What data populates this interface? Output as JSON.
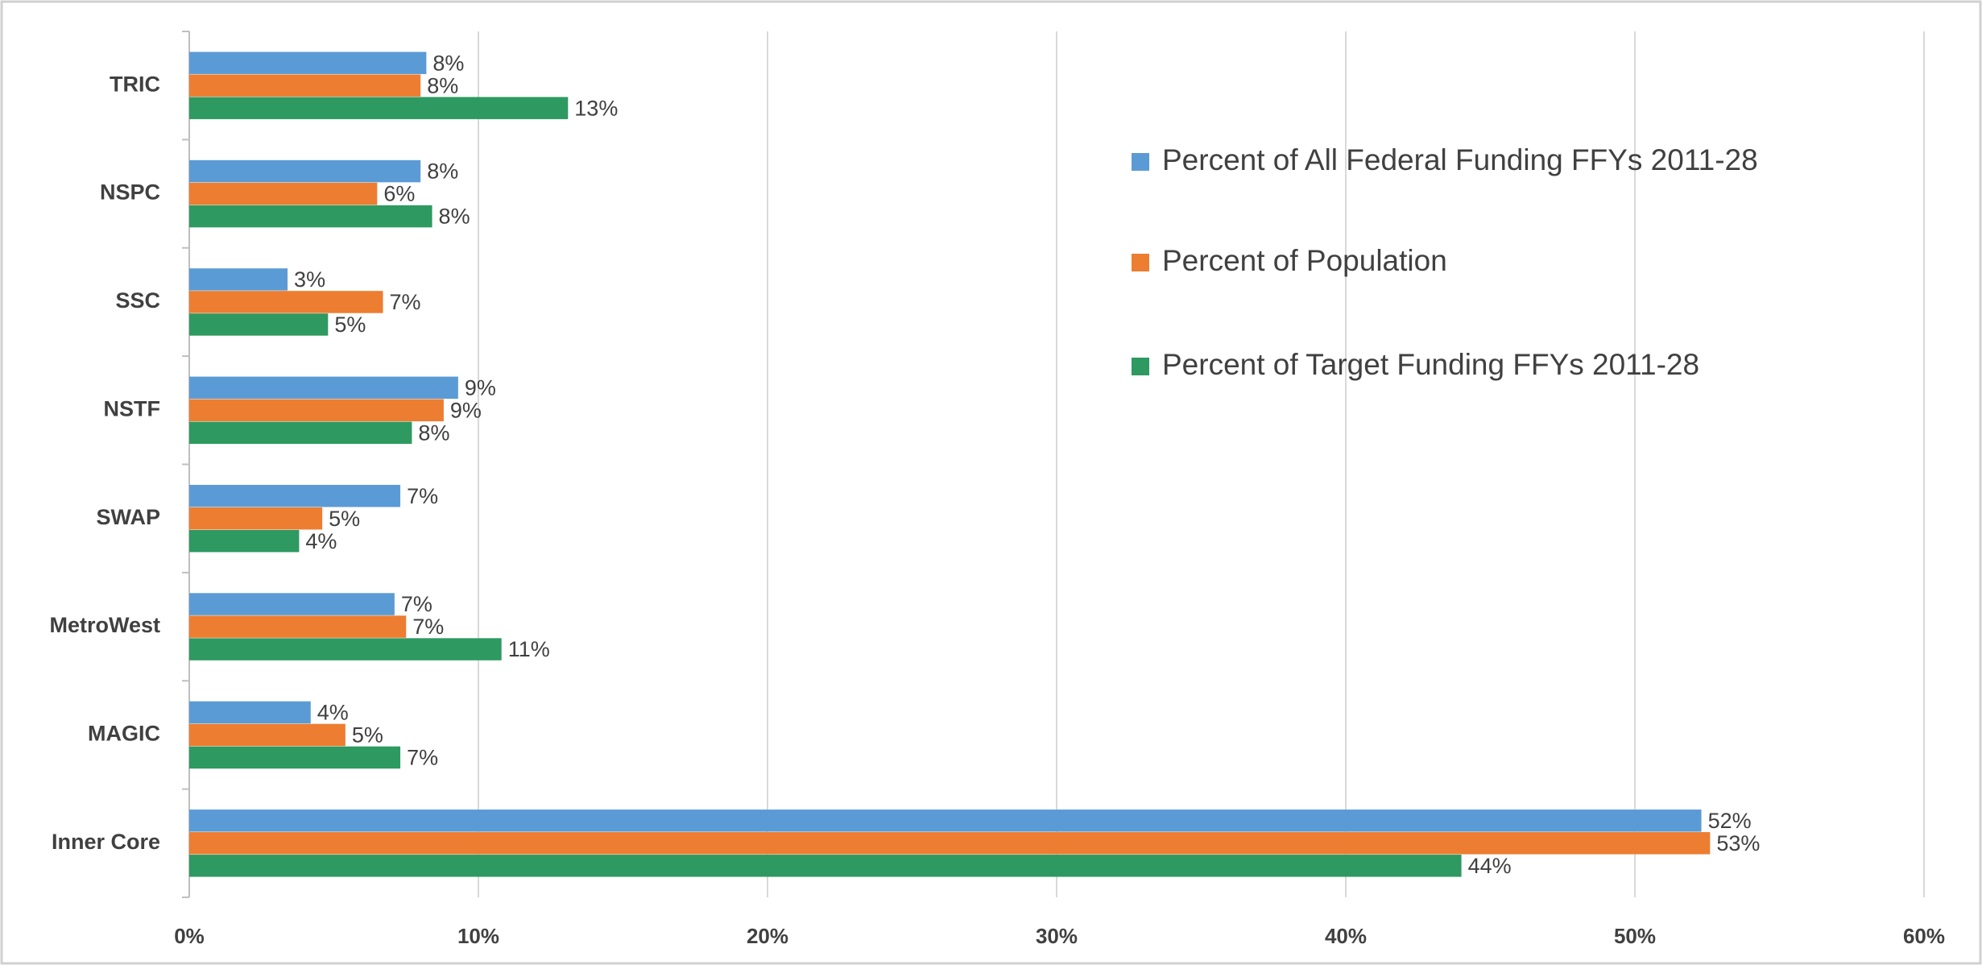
{
  "chart_data": {
    "type": "bar",
    "orientation": "horizontal",
    "categories": [
      "TRIC",
      "NSPC",
      "SSC",
      "NSTF",
      "SWAP",
      "MetroWest",
      "MAGIC",
      "Inner Core"
    ],
    "series": [
      {
        "name": "Percent of All Federal Funding FFYs 2011-28",
        "color": "#5b9bd5",
        "values": [
          8.2,
          8.0,
          3.4,
          9.3,
          7.3,
          7.1,
          4.2,
          52.3
        ],
        "value_labels": [
          "8%",
          "8%",
          "3%",
          "9%",
          "7%",
          "7%",
          "4%",
          "52%"
        ]
      },
      {
        "name": "Percent of Population",
        "color": "#ed7d31",
        "values": [
          8.0,
          6.5,
          6.7,
          8.8,
          4.6,
          7.5,
          5.4,
          52.6
        ],
        "value_labels": [
          "8%",
          "6%",
          "7%",
          "9%",
          "5%",
          "7%",
          "5%",
          "53%"
        ]
      },
      {
        "name": "Percent of Target Funding FFYs 2011-28",
        "color": "#2e9960",
        "values": [
          13.1,
          8.4,
          4.8,
          7.7,
          3.8,
          10.8,
          7.3,
          44.0
        ],
        "value_labels": [
          "13%",
          "8%",
          "5%",
          "8%",
          "4%",
          "11%",
          "7%",
          "44%"
        ]
      }
    ],
    "xlim": [
      0,
      60
    ],
    "xticks": [
      {
        "value": 0,
        "label": "0%"
      },
      {
        "value": 10,
        "label": "10%"
      },
      {
        "value": 20,
        "label": "20%"
      },
      {
        "value": 30,
        "label": "30%"
      },
      {
        "value": 40,
        "label": "40%"
      },
      {
        "value": 50,
        "label": "50%"
      },
      {
        "value": 60,
        "label": "60%"
      }
    ],
    "grid": true,
    "legend": "upper right"
  }
}
